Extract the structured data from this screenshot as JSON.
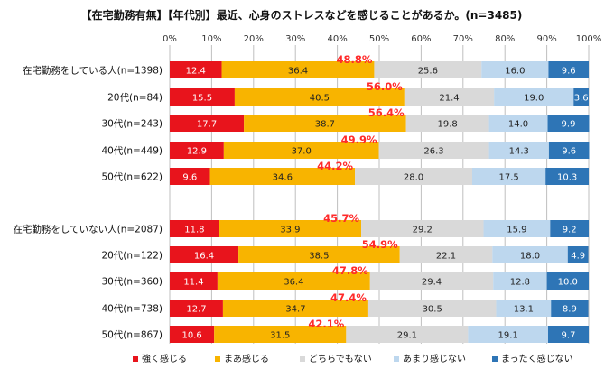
{
  "chart_data": {
    "type": "bar",
    "orientation": "horizontal",
    "stacked": true,
    "percent_scale": true,
    "title": "【在宅勤務有無】【年代別】最近、心身のストレスなどを感じることがあるか。(n=3485)",
    "xlim": [
      0,
      100
    ],
    "x_ticks": [
      "0%",
      "10%",
      "20%",
      "30%",
      "40%",
      "50%",
      "60%",
      "70%",
      "80%",
      "90%",
      "100%"
    ],
    "grid": true,
    "legend_position": "bottom",
    "categories": [
      "在宅勤務をしている人(n=1398)",
      "20代(n=84)",
      "30代(n=243)",
      "40代(n=449)",
      "50代(n=622)",
      "在宅勤務をしていない人(n=2087)",
      "20代(n=122)",
      "30代(n=360)",
      "40代(n=738)",
      "50代(n=867)"
    ],
    "series": [
      {
        "name": "強く感じる",
        "color": "#e8141c",
        "values": [
          12.4,
          15.5,
          17.7,
          12.9,
          9.6,
          11.8,
          16.4,
          11.4,
          12.7,
          10.6
        ]
      },
      {
        "name": "まあ感じる",
        "color": "#f8b400",
        "values": [
          36.4,
          40.5,
          38.7,
          37.0,
          34.6,
          33.9,
          38.5,
          36.4,
          34.7,
          31.5
        ]
      },
      {
        "name": "どちらでもない",
        "color": "#d9d9d9",
        "values": [
          25.6,
          21.4,
          19.8,
          26.3,
          28.0,
          29.2,
          22.1,
          29.4,
          30.5,
          29.1
        ]
      },
      {
        "name": "あまり感じない",
        "color": "#bdd7ee",
        "values": [
          16.0,
          19.0,
          14.0,
          14.3,
          17.5,
          15.9,
          18.0,
          12.8,
          13.1,
          19.1
        ]
      },
      {
        "name": "まったく感じない",
        "color": "#2e75b6",
        "values": [
          9.6,
          3.6,
          9.9,
          9.6,
          10.3,
          9.2,
          4.9,
          10.0,
          8.9,
          9.7
        ]
      }
    ],
    "highlight_totals": [
      "48.8%",
      "56.0%",
      "56.4%",
      "49.9%",
      "44.2%",
      "45.7%",
      "54.9%",
      "47.8%",
      "47.4%",
      "42.1%"
    ]
  }
}
